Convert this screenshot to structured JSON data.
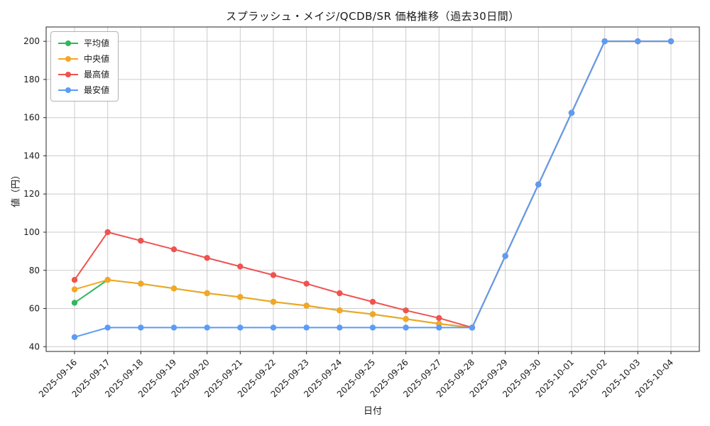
{
  "figure": {
    "background": "#ffffff",
    "grid_color": "#cccccc",
    "spine_color": "#262626",
    "text_color": "#1a1a1a"
  },
  "chart_data": {
    "type": "line",
    "title": "スプラッシュ・メイジ/QCDB/SR 価格推移（過去30日間）",
    "xlabel": "日付",
    "ylabel": "値（円）",
    "x": [
      "2025-09-16",
      "2025-09-17",
      "2025-09-18",
      "2025-09-19",
      "2025-09-20",
      "2025-09-21",
      "2025-09-22",
      "2025-09-23",
      "2025-09-24",
      "2025-09-25",
      "2025-09-26",
      "2025-09-27",
      "2025-09-28",
      "2025-09-29",
      "2025-09-30",
      "2025-10-01",
      "2025-10-02",
      "2025-10-03",
      "2025-10-04"
    ],
    "series": [
      {
        "name": "平均値",
        "color": "#2eb85c",
        "values": [
          63,
          75,
          73,
          70.5,
          68,
          66,
          63.5,
          61.5,
          59,
          57,
          54.5,
          52,
          50,
          87.5,
          125,
          162.5,
          200,
          200,
          200
        ]
      },
      {
        "name": "中央値",
        "color": "#f5a623",
        "values": [
          70,
          75,
          73,
          70.5,
          68,
          66,
          63.5,
          61.5,
          59,
          57,
          54.5,
          52,
          50,
          87.5,
          125,
          162.5,
          200,
          200,
          200
        ]
      },
      {
        "name": "最高値",
        "color": "#ef5350",
        "values": [
          75,
          100,
          95.5,
          91,
          86.5,
          82,
          77.5,
          73,
          68,
          63.5,
          59,
          55,
          50,
          87.5,
          125,
          162.5,
          200,
          200,
          200
        ]
      },
      {
        "name": "最安値",
        "color": "#5b9cf6",
        "values": [
          45,
          50,
          50,
          50,
          50,
          50,
          50,
          50,
          50,
          50,
          50,
          50,
          50,
          87.5,
          125,
          162.5,
          200,
          200,
          200
        ]
      }
    ],
    "ylim": [
      37.5,
      207.5
    ],
    "yticks": [
      40,
      60,
      80,
      100,
      120,
      140,
      160,
      180,
      200
    ],
    "grid": true,
    "legend_position": "upper left",
    "marker": "circle"
  }
}
